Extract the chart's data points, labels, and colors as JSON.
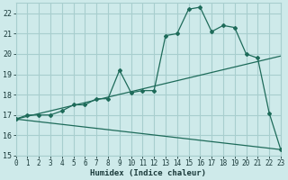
{
  "xlabel": "Humidex (Indice chaleur)",
  "bg_color": "#ceeaea",
  "grid_color": "#a8cece",
  "line_color": "#1e6b5a",
  "x_min": 0,
  "x_max": 23,
  "y_min": 15,
  "y_max": 22.5,
  "yticks": [
    15,
    16,
    17,
    18,
    19,
    20,
    21,
    22
  ],
  "xticks": [
    0,
    1,
    2,
    3,
    4,
    5,
    6,
    7,
    8,
    9,
    10,
    11,
    12,
    13,
    14,
    15,
    16,
    17,
    18,
    19,
    20,
    21,
    22,
    23
  ],
  "series1_x": [
    0,
    1,
    2,
    3,
    4,
    5,
    6,
    7,
    8,
    9,
    10,
    11,
    12,
    13,
    14,
    15,
    16,
    17,
    18,
    19,
    20,
    21,
    22,
    23
  ],
  "series1_y": [
    16.8,
    17.0,
    17.0,
    17.0,
    17.2,
    17.5,
    17.5,
    17.8,
    17.8,
    19.2,
    18.1,
    18.2,
    18.2,
    20.9,
    21.0,
    22.2,
    22.3,
    21.1,
    21.4,
    21.3,
    20.0,
    19.8,
    17.1,
    15.3
  ],
  "series2_x": [
    0,
    23
  ],
  "series2_y": [
    16.8,
    19.9
  ],
  "series3_x": [
    0,
    23
  ],
  "series3_y": [
    16.8,
    15.3
  ],
  "xlabel_fontsize": 6.5,
  "tick_fontsize": 5.5,
  "ytick_fontsize": 6.0
}
